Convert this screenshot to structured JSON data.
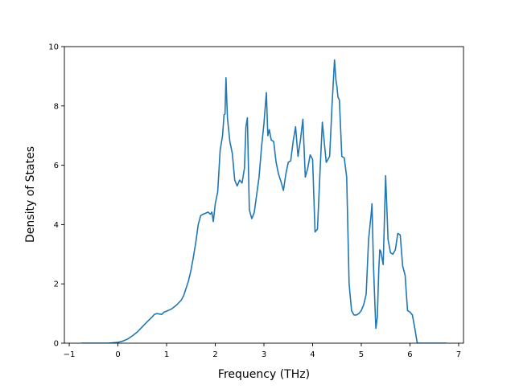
{
  "chart_data": {
    "type": "line",
    "title": "",
    "xlabel": "Frequency (THz)",
    "ylabel": "Density of States",
    "xlim": [
      -1.1,
      7.1
    ],
    "ylim": [
      0,
      10
    ],
    "xticks": [
      -1,
      0,
      1,
      2,
      3,
      4,
      5,
      6,
      7
    ],
    "yticks": [
      0,
      2,
      4,
      6,
      8,
      10
    ],
    "grid": false,
    "legend": "none",
    "colors": {
      "line": "#1f77b4",
      "axes": "#000000",
      "background": "#ffffff"
    },
    "series": [
      {
        "x": [
          -0.75,
          -0.5,
          -0.2,
          0.0,
          0.1,
          0.2,
          0.3,
          0.4,
          0.5,
          0.6,
          0.7,
          0.75,
          0.8,
          0.9,
          0.95,
          1.0,
          1.1,
          1.2,
          1.3,
          1.35,
          1.4,
          1.45,
          1.5,
          1.55,
          1.6,
          1.65,
          1.7,
          1.75,
          1.8,
          1.85,
          1.9,
          1.93,
          1.96,
          2.0,
          2.05,
          2.1,
          2.15,
          2.18,
          2.2,
          2.22,
          2.25,
          2.3,
          2.35,
          2.4,
          2.45,
          2.5,
          2.55,
          2.6,
          2.63,
          2.66,
          2.7,
          2.75,
          2.8,
          2.85,
          2.9,
          2.95,
          3.0,
          3.05,
          3.08,
          3.11,
          3.15,
          3.2,
          3.25,
          3.3,
          3.35,
          3.4,
          3.45,
          3.5,
          3.55,
          3.6,
          3.65,
          3.7,
          3.75,
          3.8,
          3.85,
          3.9,
          3.95,
          4.0,
          4.05,
          4.1,
          4.15,
          4.2,
          4.25,
          4.28,
          4.3,
          4.35,
          4.4,
          4.45,
          4.48,
          4.5,
          4.52,
          4.55,
          4.6,
          4.65,
          4.7,
          4.75,
          4.8,
          4.85,
          4.9,
          4.95,
          5.0,
          5.05,
          5.1,
          5.15,
          5.2,
          5.22,
          5.25,
          5.28,
          5.3,
          5.33,
          5.36,
          5.38,
          5.4,
          5.45,
          5.5,
          5.55,
          5.6,
          5.65,
          5.7,
          5.75,
          5.8,
          5.85,
          5.9,
          5.95,
          6.0,
          6.05,
          6.1,
          6.15,
          6.2,
          6.5,
          6.75
        ],
        "y": [
          0,
          0,
          0,
          0.03,
          0.07,
          0.14,
          0.25,
          0.38,
          0.55,
          0.72,
          0.88,
          0.97,
          1.0,
          0.97,
          1.05,
          1.08,
          1.15,
          1.28,
          1.45,
          1.6,
          1.85,
          2.1,
          2.45,
          2.9,
          3.4,
          4.0,
          4.3,
          4.35,
          4.38,
          4.42,
          4.35,
          4.42,
          4.1,
          4.7,
          5.1,
          6.5,
          7.0,
          7.7,
          7.72,
          8.95,
          7.6,
          6.8,
          6.4,
          5.5,
          5.3,
          5.5,
          5.4,
          5.9,
          7.3,
          7.6,
          4.5,
          4.2,
          4.4,
          5.0,
          5.6,
          6.6,
          7.4,
          8.45,
          7.0,
          7.2,
          6.85,
          6.8,
          6.1,
          5.7,
          5.45,
          5.15,
          5.7,
          6.1,
          6.15,
          6.8,
          7.3,
          6.3,
          6.85,
          7.55,
          5.6,
          5.9,
          6.35,
          6.2,
          3.75,
          3.85,
          5.7,
          7.45,
          6.6,
          6.1,
          6.15,
          6.3,
          8.05,
          9.55,
          8.85,
          8.65,
          8.3,
          8.2,
          6.3,
          6.25,
          5.6,
          2.0,
          1.1,
          0.95,
          0.95,
          1.0,
          1.1,
          1.3,
          1.65,
          3.5,
          4.3,
          4.7,
          2.65,
          1.3,
          0.5,
          0.9,
          2.5,
          3.15,
          3.1,
          2.65,
          5.65,
          3.5,
          3.05,
          3.0,
          3.15,
          3.7,
          3.65,
          2.6,
          2.3,
          1.1,
          1.05,
          0.95,
          0.5,
          0,
          0,
          0,
          0
        ]
      }
    ]
  }
}
